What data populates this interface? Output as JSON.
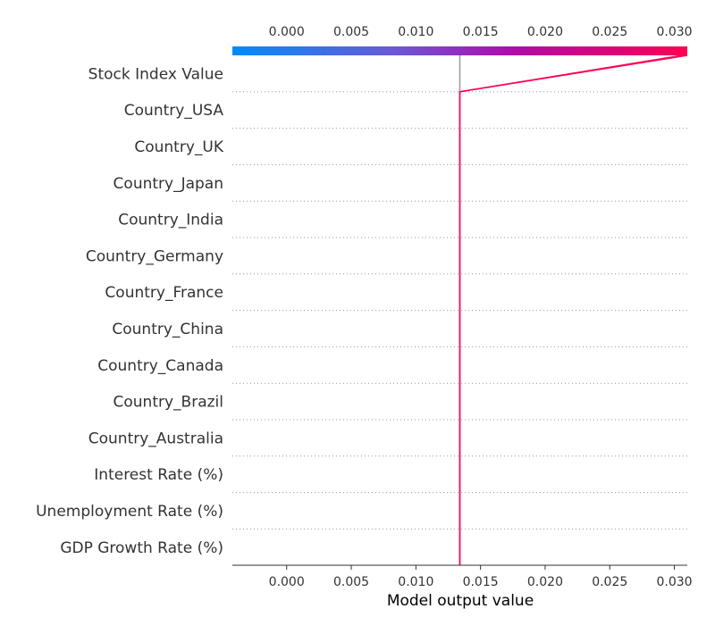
{
  "chart_data": {
    "type": "decision-plot",
    "xlabel": "Model output value",
    "ylabel": "",
    "title": "",
    "xlim": [
      -0.0042,
      0.031
    ],
    "x_ticks": [
      0.0,
      0.005,
      0.01,
      0.015,
      0.02,
      0.025,
      0.03
    ],
    "x_tick_labels": [
      "0.000",
      "0.005",
      "0.010",
      "0.015",
      "0.020",
      "0.025",
      "0.030"
    ],
    "base_value": 0.0134,
    "features": [
      "Stock Index Value",
      "Country_USA",
      "Country_UK",
      "Country_Japan",
      "Country_India",
      "Country_Germany",
      "Country_France",
      "Country_China",
      "Country_Canada",
      "Country_Brazil",
      "Country_Australia",
      "Interest Rate (%)",
      "Unemployment Rate (%)",
      "GDP Growth Rate (%)"
    ],
    "series": [
      {
        "final_value": 0.0306,
        "after_top_feature": 0.0134
      },
      {
        "final_value": 0.031,
        "after_top_feature": 0.0134
      }
    ],
    "colorbar": {
      "stops": [
        "#008bfb",
        "#8a4fc4",
        "#c80aa5",
        "#ff0052"
      ]
    },
    "colors": {
      "line": "#ff0052",
      "base_line": "#999999",
      "grid": "#999999",
      "axis": "#333333"
    }
  }
}
